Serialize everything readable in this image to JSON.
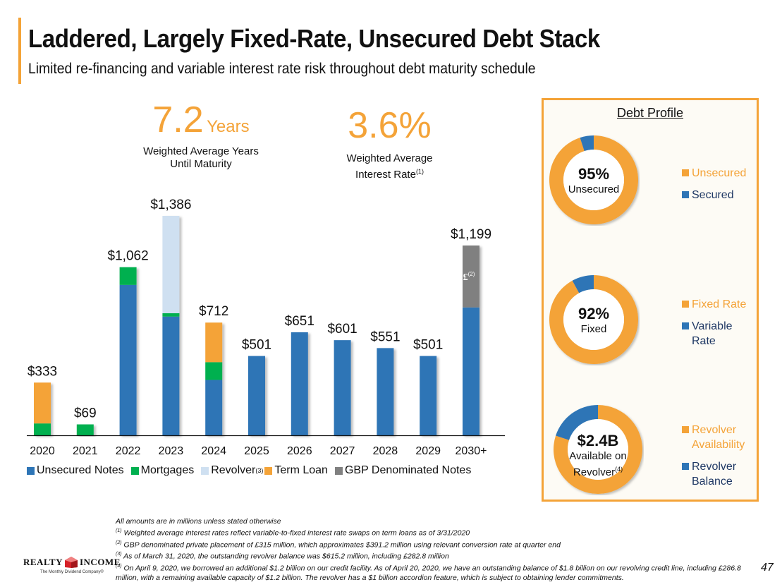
{
  "header": {
    "title": "Laddered, Largely Fixed-Rate, Unsecured Debt Stack",
    "subtitle": "Limited re-financing and variable interest rate risk throughout debt maturity schedule"
  },
  "kpis": [
    {
      "value": "7.2",
      "unit": "Years",
      "label_line1": "Weighted Average Years",
      "label_line2": "Until Maturity"
    },
    {
      "value": "3.6%",
      "label_line1": "Weighted Average",
      "label_line2": "Interest Rate",
      "footnote": "(1)"
    }
  ],
  "colors": {
    "unsecured_notes": "#2e75b6",
    "mortgages": "#00b050",
    "revolver": "#cfe0f1",
    "term_loan": "#f4a338",
    "gbp_notes": "#808080",
    "accent": "#f4a338"
  },
  "chart_data": [
    {
      "type": "bar",
      "stacked": true,
      "title": "Debt Maturity Schedule",
      "units": "USD millions",
      "categories": [
        "2020",
        "2021",
        "2022",
        "2023",
        "2024",
        "2025",
        "2026",
        "2027",
        "2028",
        "2029",
        "2030+"
      ],
      "totals": [
        "$333",
        "$69",
        "$1,062",
        "$1,386",
        "$712",
        "$501",
        "$651",
        "$601",
        "$551",
        "$501",
        "$1,199"
      ],
      "series": [
        {
          "name": "Unsecured Notes",
          "color": "#2e75b6",
          "values": [
            0,
            0,
            950,
            750,
            350,
            501,
            651,
            601,
            551,
            501,
            808
          ]
        },
        {
          "name": "Mortgages",
          "color": "#00b050",
          "values": [
            75,
            69,
            112,
            21,
            112,
            0,
            0,
            0,
            0,
            0,
            0
          ]
        },
        {
          "name": "Revolver",
          "footnote": "(3)",
          "color": "#cfe0f1",
          "values": [
            0,
            0,
            0,
            615,
            0,
            0,
            0,
            0,
            0,
            0,
            0
          ]
        },
        {
          "name": "Term Loan",
          "color": "#f4a338",
          "values": [
            258,
            0,
            0,
            0,
            250,
            0,
            0,
            0,
            0,
            0,
            0
          ]
        },
        {
          "name": "GBP Denominated Notes",
          "color": "#808080",
          "values": [
            0,
            0,
            0,
            0,
            0,
            0,
            0,
            0,
            0,
            0,
            391
          ]
        }
      ],
      "annotations": [
        {
          "category": "2030+",
          "series": "GBP Denominated Notes",
          "text": "£",
          "footnote": "(2)"
        }
      ],
      "ylim": [
        0,
        1400
      ],
      "grid": false,
      "yaxis_visible": false,
      "legend": "bottom"
    },
    {
      "type": "pie",
      "donut": true,
      "title": "Debt Profile - Secured vs Unsecured",
      "labels": [
        "Unsecured",
        "Secured"
      ],
      "values": [
        95,
        5
      ],
      "colors": [
        "#f4a338",
        "#2e75b6"
      ],
      "center_big": "95%",
      "center_small": "Unsecured",
      "legend": "right"
    },
    {
      "type": "pie",
      "donut": true,
      "title": "Debt Profile - Fixed vs Variable",
      "labels": [
        "Fixed Rate",
        "Variable Rate"
      ],
      "values": [
        92,
        8
      ],
      "colors": [
        "#f4a338",
        "#2e75b6"
      ],
      "center_big": "92%",
      "center_small": "Fixed",
      "legend": "right"
    },
    {
      "type": "pie",
      "donut": true,
      "title": "Debt Profile - Revolver",
      "labels": [
        "Revolver Availability",
        "Revolver Balance"
      ],
      "values": [
        80,
        20
      ],
      "colors": [
        "#f4a338",
        "#2e75b6"
      ],
      "center_big": "$2.4B",
      "center_small_line1": "Available on",
      "center_small_line2": "Revolver",
      "center_footnote": "(4)",
      "legend": "right"
    }
  ],
  "panel": {
    "title": "Debt Profile",
    "legends": [
      [
        {
          "label": "Unsecured",
          "color": "#f4a338"
        },
        {
          "label": "Secured",
          "color": "#2e75b6"
        }
      ],
      [
        {
          "label": "Fixed Rate",
          "color": "#f4a338"
        },
        {
          "label_line1": "Variable",
          "label_line2": "Rate",
          "color": "#2e75b6"
        }
      ],
      [
        {
          "label_line1": "Revolver",
          "label_line2": "Availability",
          "color": "#f4a338"
        },
        {
          "label_line1": "Revolver",
          "label_line2": "Balance",
          "color": "#2e75b6"
        }
      ]
    ]
  },
  "footnotes": {
    "intro": "All amounts are in millions unless stated otherwise",
    "items": [
      {
        "mark": "(1)",
        "text": "Weighted average interest rates reflect variable-to-fixed interest rate swaps on term loans as of 3/31/2020"
      },
      {
        "mark": "(2)",
        "text": "GBP denominated private placement of £315 million, which approximates $391.2 million using relevant conversion rate at quarter end"
      },
      {
        "mark": "(3)",
        "text": "As of March 31, 2020, the outstanding revolver balance was $615.2 million, including £282.8 million"
      },
      {
        "mark": "(4)",
        "text": "On April 9, 2020, we borrowed an additional $1.2 billion on our credit facility. As of April 20, 2020, we have an outstanding balance of $1.8 billion on our revolving credit line, including £286.8 million, with a remaining available capacity of $1.2 billion. The revolver has a $1 billion accordion feature, which is subject to obtaining lender commitments."
      }
    ]
  },
  "logo": {
    "left": "REALTY",
    "right": "INCOME",
    "tagline": "The Monthly Dividend Company®"
  },
  "page_number": "47"
}
